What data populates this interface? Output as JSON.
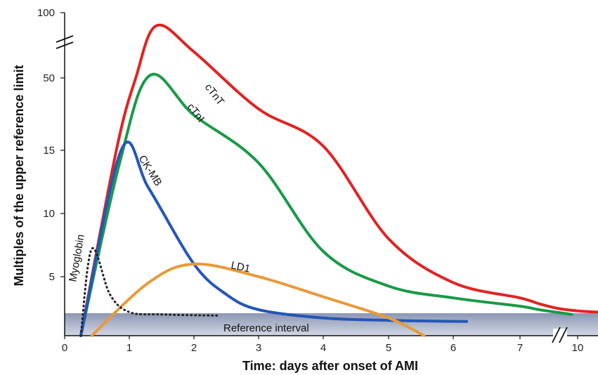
{
  "chart_data": {
    "type": "line",
    "xlabel": "Time: days after onset of AMI",
    "ylabel": "Multiples of the upper reference limit",
    "x_ticks": [
      "0",
      "1",
      "2",
      "3",
      "4",
      "5",
      "6",
      "7",
      "10"
    ],
    "y_ticks": [
      "5",
      "10",
      "15",
      "50",
      "100"
    ],
    "reference_band_label": "Reference interval",
    "axis_breaks": {
      "x": "between 7 and 10",
      "y": "between 50 and 100"
    },
    "series": [
      {
        "name": "cTnT",
        "color": "#e02424",
        "points": [
          [
            0.25,
            0
          ],
          [
            0.8,
            15
          ],
          [
            1.1,
            50
          ],
          [
            1.42,
            90
          ],
          [
            2,
            70
          ],
          [
            3,
            35
          ],
          [
            4,
            17
          ],
          [
            5,
            8
          ],
          [
            6,
            4.5
          ],
          [
            7,
            3.2
          ],
          [
            8,
            2.7
          ],
          [
            9,
            2.3
          ],
          [
            10,
            2.1
          ],
          [
            10.5,
            2.0
          ]
        ]
      },
      {
        "name": "cTnI",
        "color": "#1a9a48",
        "points": [
          [
            0.25,
            0
          ],
          [
            0.85,
            14
          ],
          [
            1.32,
            52
          ],
          [
            2,
            32
          ],
          [
            3,
            14
          ],
          [
            4,
            7
          ],
          [
            5,
            4.2
          ],
          [
            6,
            3.2
          ],
          [
            7,
            2.5
          ],
          [
            8,
            2.2
          ],
          [
            9.7,
            1.8
          ]
        ]
      },
      {
        "name": "CK-MB",
        "color": "#2456b8",
        "points": [
          [
            0.25,
            0
          ],
          [
            0.88,
            15.5
          ],
          [
            1.3,
            12
          ],
          [
            2,
            6
          ],
          [
            2.5,
            3.5
          ],
          [
            3,
            2.2
          ],
          [
            4,
            1.5
          ],
          [
            5,
            1.3
          ],
          [
            6.2,
            1.2
          ]
        ]
      },
      {
        "name": "LD1",
        "color": "#e89a3a",
        "points": [
          [
            0.42,
            0
          ],
          [
            1.3,
            4.5
          ],
          [
            2,
            6
          ],
          [
            3,
            5
          ],
          [
            4,
            3.3
          ],
          [
            5,
            1.5
          ],
          [
            5.55,
            0
          ]
        ]
      },
      {
        "name": "Myoglobin",
        "color": "#222222",
        "dashed": true,
        "points": [
          [
            0.25,
            0
          ],
          [
            0.42,
            7.2
          ],
          [
            0.7,
            3.5
          ],
          [
            1,
            2
          ],
          [
            1.5,
            1.8
          ],
          [
            2.4,
            1.7
          ]
        ]
      }
    ]
  }
}
